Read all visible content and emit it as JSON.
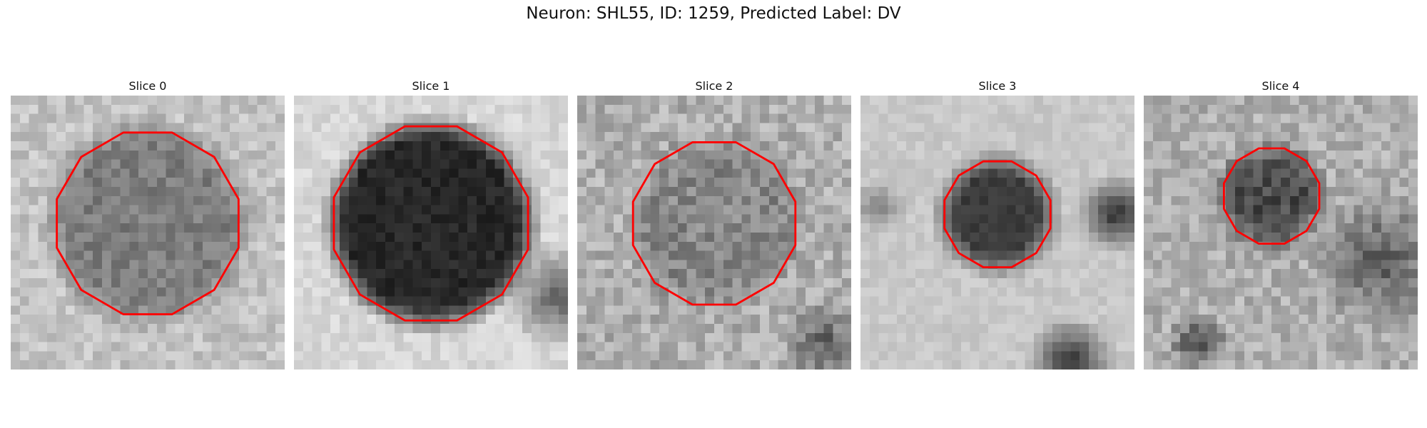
{
  "figure": {
    "title": "Neuron: SHL55, ID: 1259, Predicted Label: DV"
  },
  "contour_color": "#ff0000",
  "colormap": "gray",
  "panels": [
    {
      "title": "Slice 0",
      "pattern": "uniform-dim-disc"
    },
    {
      "title": "Slice 1",
      "pattern": "dark-disc"
    },
    {
      "title": "Slice 2",
      "pattern": "noisy-disc"
    },
    {
      "title": "Slice 3",
      "pattern": "small-dark-disc-with-neighbors"
    },
    {
      "title": "Slice 4",
      "pattern": "small-dark-disc-noisy"
    }
  ]
}
